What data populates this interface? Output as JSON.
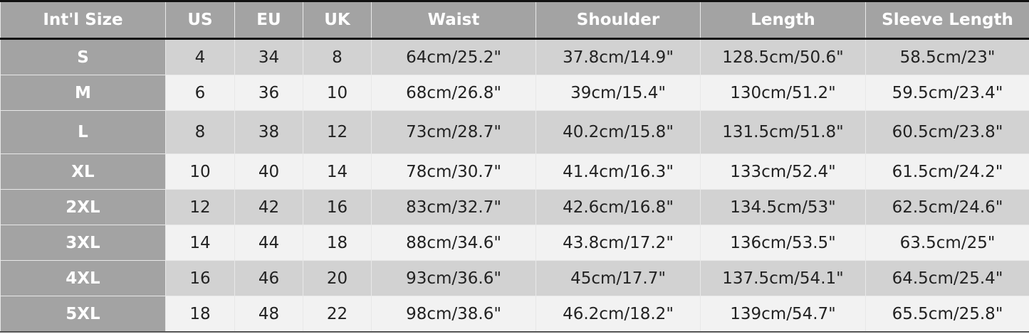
{
  "headers": [
    "Int'l Size",
    "US",
    "EU",
    "UK",
    "Waist",
    "Shoulder",
    "Length",
    "Sleeve Length"
  ],
  "rows": [
    [
      "S",
      "4",
      "34",
      "8",
      "64cm/25.2\"",
      "37.8cm/14.9\"",
      "128.5cm/50.6\"",
      "58.5cm/23\""
    ],
    [
      "M",
      "6",
      "36",
      "10",
      "68cm/26.8\"",
      "39cm/15.4\"",
      "130cm/51.2\"",
      "59.5cm/23.4\""
    ],
    [
      "L",
      "8",
      "38",
      "12",
      "73cm/28.7\"",
      "40.2cm/15.8\"",
      "131.5cm/51.8\"",
      "60.5cm/23.8\""
    ],
    [
      "XL",
      "10",
      "40",
      "14",
      "78cm/30.7\"",
      "41.4cm/16.3\"",
      "133cm/52.4\"",
      "61.5cm/24.2\""
    ],
    [
      "2XL",
      "12",
      "42",
      "16",
      "83cm/32.7\"",
      "42.6cm/16.8\"",
      "134.5cm/53\"",
      "62.5cm/24.6\""
    ],
    [
      "3XL",
      "14",
      "44",
      "18",
      "88cm/34.6\"",
      "43.8cm/17.2\"",
      "136cm/53.5\"",
      "63.5cm/25\""
    ],
    [
      "4XL",
      "16",
      "46",
      "20",
      "93cm/36.6\"",
      "45cm/17.7\"",
      "137.5cm/54.1\"",
      "64.5cm/25.4\""
    ],
    [
      "5XL",
      "18",
      "48",
      "22",
      "98cm/38.6\"",
      "46.2cm/18.2\"",
      "139cm/54.7\"",
      "65.5cm/25.8\""
    ]
  ],
  "colors": {
    "header": "#a3a3a3",
    "row_dark": "#d2d2d2",
    "row_light": "#f2f2f2"
  }
}
